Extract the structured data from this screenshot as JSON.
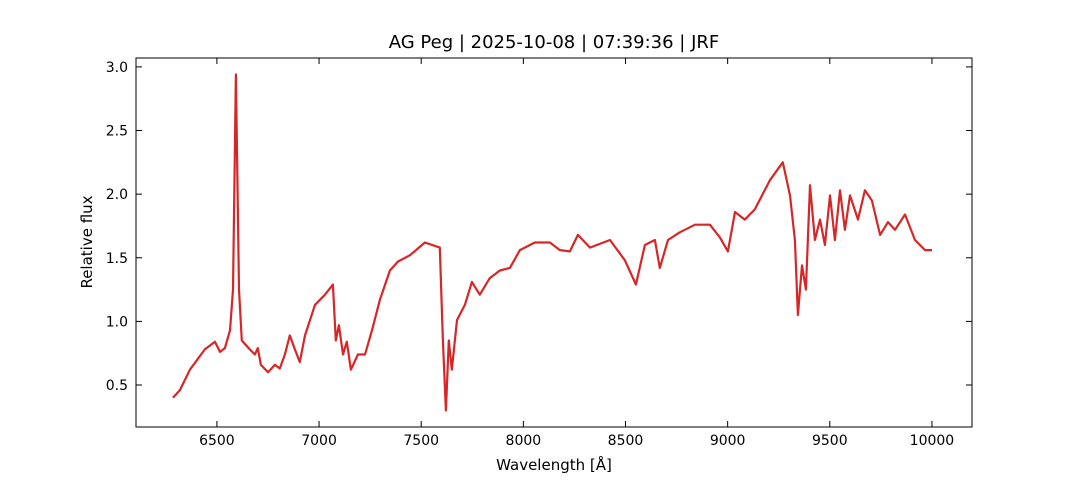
{
  "chart_data": {
    "type": "line",
    "title": "AG Peg | 2025-10-08 | 07:39:36 | JRF",
    "xlabel": "Wavelength [Å]",
    "ylabel": "Relative flux",
    "xlim": [
      6104,
      10196
    ],
    "ylim": [
      0.17,
      3.07
    ],
    "xticks": [
      6500,
      7000,
      7500,
      8000,
      8500,
      9000,
      9500,
      10000
    ],
    "yticks": [
      0.5,
      {
        "value": 1,
        "label": "1.0"
      },
      1.5,
      {
        "value": 2,
        "label": "2.0"
      },
      2.5,
      {
        "value": 3,
        "label": "3.0"
      }
    ],
    "grid": false,
    "series": [
      {
        "name": "AG Peg",
        "color": "#d62728",
        "x": [
          6285,
          6319,
          6368,
          6441,
          6490,
          6515,
          6539,
          6564,
          6579,
          6593,
          6608,
          6622,
          6661,
          6686,
          6700,
          6715,
          6750,
          6784,
          6808,
          6833,
          6857,
          6882,
          6906,
          6931,
          6980,
          7029,
          7068,
          7082,
          7097,
          7117,
          7136,
          7156,
          7190,
          7225,
          7259,
          7298,
          7347,
          7386,
          7445,
          7518,
          7591,
          7606,
          7621,
          7635,
          7650,
          7675,
          7714,
          7748,
          7787,
          7836,
          7885,
          7934,
          7983,
          8056,
          8130,
          8179,
          8228,
          8267,
          8326,
          8424,
          8497,
          8551,
          8595,
          8644,
          8668,
          8708,
          8766,
          8840,
          8913,
          8962,
          9001,
          9036,
          9084,
          9133,
          9207,
          9270,
          9305,
          9329,
          9344,
          9364,
          9383,
          9403,
          9427,
          9452,
          9476,
          9501,
          9525,
          9550,
          9574,
          9599,
          9638,
          9672,
          9706,
          9746,
          9785,
          9819,
          9868,
          9917,
          9966,
          10000
        ],
        "values": [
          0.4,
          0.46,
          0.62,
          0.78,
          0.84,
          0.76,
          0.79,
          0.93,
          1.25,
          2.94,
          1.25,
          0.85,
          0.78,
          0.74,
          0.79,
          0.66,
          0.6,
          0.66,
          0.63,
          0.74,
          0.89,
          0.78,
          0.68,
          0.89,
          1.13,
          1.21,
          1.29,
          0.85,
          0.97,
          0.74,
          0.84,
          0.62,
          0.74,
          0.74,
          0.93,
          1.17,
          1.4,
          1.47,
          1.52,
          1.62,
          1.58,
          0.85,
          0.3,
          0.85,
          0.62,
          1.01,
          1.13,
          1.31,
          1.21,
          1.34,
          1.4,
          1.42,
          1.56,
          1.62,
          1.62,
          1.56,
          1.55,
          1.68,
          1.58,
          1.64,
          1.48,
          1.29,
          1.6,
          1.64,
          1.42,
          1.64,
          1.7,
          1.76,
          1.76,
          1.66,
          1.55,
          1.86,
          1.8,
          1.88,
          2.11,
          2.25,
          1.99,
          1.64,
          1.05,
          1.44,
          1.25,
          2.07,
          1.64,
          1.8,
          1.6,
          1.99,
          1.64,
          2.03,
          1.72,
          1.99,
          1.8,
          2.03,
          1.95,
          1.68,
          1.78,
          1.72,
          1.84,
          1.64,
          1.56,
          1.56
        ]
      }
    ]
  }
}
